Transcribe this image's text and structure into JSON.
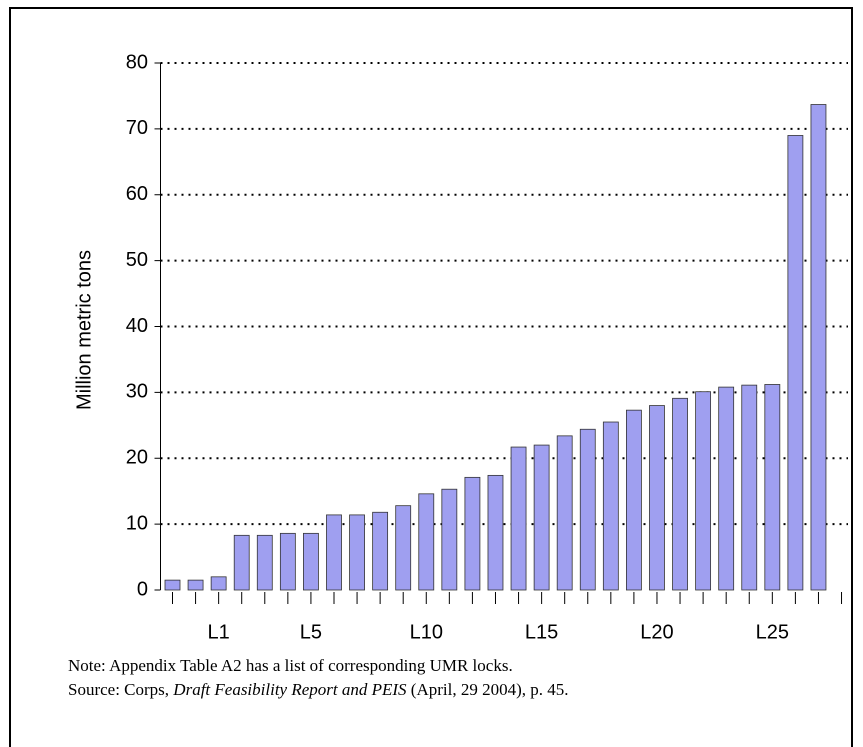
{
  "chart_data": {
    "type": "bar",
    "y_label": "Million metric tons",
    "categories": [
      null,
      null,
      "L1",
      null,
      null,
      null,
      "L5",
      null,
      null,
      null,
      null,
      "L10",
      null,
      null,
      null,
      null,
      "L15",
      null,
      null,
      null,
      null,
      "L20",
      null,
      null,
      null,
      null,
      "L25",
      null,
      null
    ],
    "values": [
      1.5,
      1.5,
      2,
      8.3,
      8.3,
      8.6,
      8.6,
      11.4,
      11.4,
      11.8,
      12.8,
      14.6,
      15.3,
      17.1,
      17.4,
      21.7,
      22,
      23.4,
      24.4,
      25.5,
      27.3,
      28,
      29.1,
      30.1,
      30.8,
      31.1,
      31.2,
      69,
      73.7
    ],
    "color": "#9f9ff0",
    "ylim": [
      0,
      80
    ],
    "yticks": [
      0,
      10,
      20,
      30,
      40,
      50,
      60,
      70,
      80
    ],
    "grid": true,
    "note": "Note: Appendix Table A2 has a list of corresponding UMR locks.",
    "source": {
      "prefix": "Source: Corps, ",
      "title": "Draft Feasibility Report and PEIS",
      "suffix": " (April, 29 2004), p. 45."
    }
  }
}
